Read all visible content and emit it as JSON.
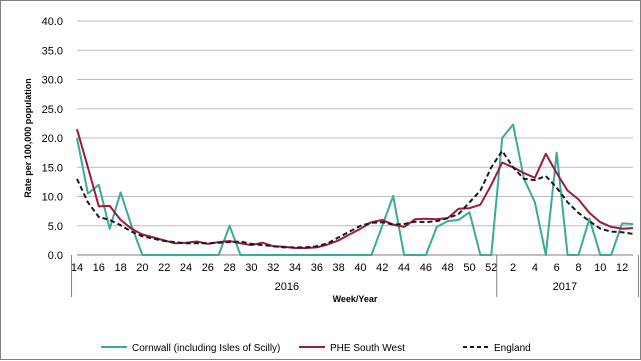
{
  "chart_data": {
    "type": "line",
    "title": "",
    "xlabel": "Week/Year",
    "ylabel": "Rate per 100,000 population",
    "ylim": [
      0,
      40
    ],
    "yticks": [
      "0.0",
      "5.0",
      "10.0",
      "15.0",
      "20.0",
      "25.0",
      "30.0",
      "35.0",
      "40.0"
    ],
    "grid": "horizontal",
    "legend_position": "bottom",
    "year_groups": [
      {
        "label": "2016",
        "from_week": 14,
        "to_week": 52
      },
      {
        "label": "2017",
        "from_week": 1,
        "to_week": 13
      }
    ],
    "x": [
      14,
      15,
      16,
      17,
      18,
      19,
      20,
      21,
      22,
      23,
      24,
      25,
      26,
      27,
      28,
      29,
      30,
      31,
      32,
      33,
      34,
      35,
      36,
      37,
      38,
      39,
      40,
      41,
      42,
      43,
      44,
      45,
      46,
      47,
      48,
      49,
      50,
      51,
      52,
      1,
      2,
      3,
      4,
      5,
      6,
      7,
      8,
      9,
      10,
      11,
      12,
      13
    ],
    "x_tick_labels": [
      "14",
      "",
      "16",
      "",
      "18",
      "",
      "20",
      "",
      "22",
      "",
      "24",
      "",
      "26",
      "",
      "28",
      "",
      "30",
      "",
      "32",
      "",
      "34",
      "",
      "36",
      "",
      "38",
      "",
      "40",
      "",
      "42",
      "",
      "44",
      "",
      "46",
      "",
      "48",
      "",
      "50",
      "",
      "52",
      "",
      "2",
      "",
      "4",
      "",
      "6",
      "",
      "8",
      "",
      "10",
      "",
      "12",
      ""
    ],
    "series": [
      {
        "name": "Cornwall (including Isles of Scilly)",
        "color": "#3aaa9a",
        "dash": "solid",
        "values": [
          20.0,
          10.5,
          12.0,
          4.5,
          10.7,
          5.0,
          0,
          0,
          0,
          0,
          0,
          0,
          0,
          0,
          5.0,
          0,
          0,
          0,
          0,
          0,
          0,
          0,
          0,
          0,
          0,
          0,
          0,
          0,
          5.0,
          10.1,
          0,
          0,
          0,
          4.8,
          5.8,
          6.0,
          7.3,
          0,
          0,
          20.0,
          22.3,
          13.0,
          9.0,
          0,
          17.5,
          0,
          0,
          6.2,
          0,
          0,
          5.4,
          5.3
        ]
      },
      {
        "name": "PHE South West",
        "color": "#9b1b40",
        "dash": "solid",
        "values": [
          21.5,
          15.0,
          8.3,
          8.4,
          6.0,
          4.5,
          3.5,
          3.0,
          2.5,
          2.0,
          2.1,
          2.3,
          1.9,
          2.2,
          2.4,
          2.0,
          1.7,
          2.1,
          1.5,
          1.4,
          1.2,
          1.2,
          1.3,
          1.8,
          2.5,
          3.5,
          4.5,
          5.6,
          6.0,
          5.2,
          4.8,
          6.1,
          6.2,
          6.1,
          6.3,
          7.9,
          8.0,
          8.6,
          12.0,
          15.8,
          15.0,
          14.0,
          13.2,
          17.3,
          14.0,
          11.0,
          9.5,
          7.2,
          5.6,
          4.8,
          4.5,
          4.6
        ]
      },
      {
        "name": "England",
        "color": "#1a1a1a",
        "dash": "dashed",
        "values": [
          13.0,
          9.0,
          6.5,
          6.0,
          5.1,
          4.0,
          3.2,
          2.8,
          2.4,
          2.2,
          2.0,
          2.0,
          2.0,
          2.1,
          2.2,
          2.3,
          1.9,
          1.7,
          1.5,
          1.3,
          1.3,
          1.3,
          1.5,
          2.0,
          3.0,
          4.0,
          5.0,
          5.5,
          5.6,
          5.2,
          5.3,
          5.7,
          5.6,
          5.8,
          6.3,
          7.0,
          9.0,
          11.0,
          15.0,
          17.8,
          15.0,
          13.0,
          12.8,
          13.5,
          11.5,
          9.0,
          7.2,
          5.8,
          4.5,
          4.0,
          3.9,
          3.6
        ]
      }
    ]
  }
}
